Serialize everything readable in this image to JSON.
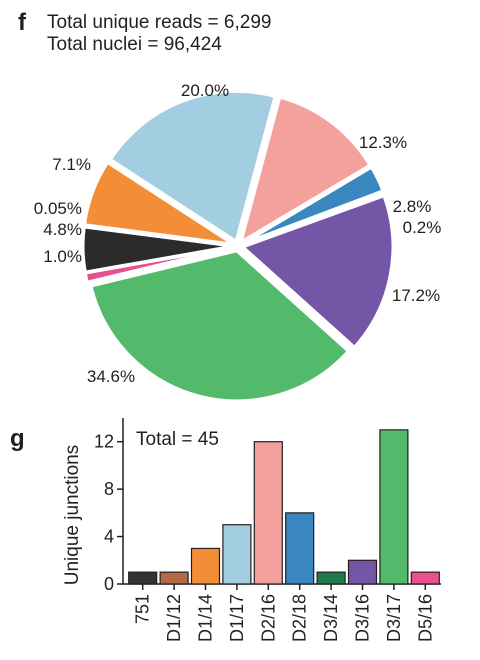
{
  "panel_f": {
    "letter": "f",
    "title_line1": "Total unique reads = 6,299",
    "title_line2": "Total nuclei = 96,424"
  },
  "panel_g": {
    "letter": "g",
    "annotation": "Total = 45"
  },
  "chart_data": [
    {
      "type": "pie",
      "title": "Total unique reads = 6,299",
      "subtitle": "Total nuclei = 96,424",
      "start_angle_deg": 15,
      "direction": "clockwise",
      "slices": [
        {
          "label": "12.3%",
          "value": 12.3,
          "color": "#f4a09d"
        },
        {
          "label": "2.8%",
          "value": 2.8,
          "color": "#3a86bf"
        },
        {
          "label": "0.2%",
          "value": 0.2,
          "color": "#1f7a4c"
        },
        {
          "label": "17.2%",
          "value": 17.2,
          "color": "#7555a6"
        },
        {
          "label": "34.6%",
          "value": 34.6,
          "color": "#53b96b"
        },
        {
          "label": "1.0%",
          "value": 1.0,
          "color": "#e8508f"
        },
        {
          "label": "4.8%",
          "value": 4.8,
          "color": "#2b2b2b"
        },
        {
          "label": "0.05%",
          "value": 0.05,
          "color": "#9c5a3a"
        },
        {
          "label": "7.1%",
          "value": 7.1,
          "color": "#f48e36"
        },
        {
          "label": "20.0%",
          "value": 20.0,
          "color": "#a3cde0"
        }
      ]
    },
    {
      "type": "bar",
      "ylabel": "Unique junctions",
      "xlabel": "",
      "ylim": [
        0,
        14
      ],
      "yticks": [
        0,
        4,
        8,
        12
      ],
      "annotation": "Total = 45",
      "categories": [
        "751",
        "D1/12",
        "D1/14",
        "D1/17",
        "D2/16",
        "D2/18",
        "D3/14",
        "D3/16",
        "D3/17",
        "D5/16"
      ],
      "values": [
        1,
        1,
        3,
        5,
        12,
        6,
        1,
        2,
        13,
        1
      ],
      "colors": [
        "#333333",
        "#b06a45",
        "#f48e36",
        "#a3cde0",
        "#f4a09d",
        "#3a86bf",
        "#1f7a4c",
        "#7555a6",
        "#53b96b",
        "#e8508f"
      ]
    }
  ]
}
